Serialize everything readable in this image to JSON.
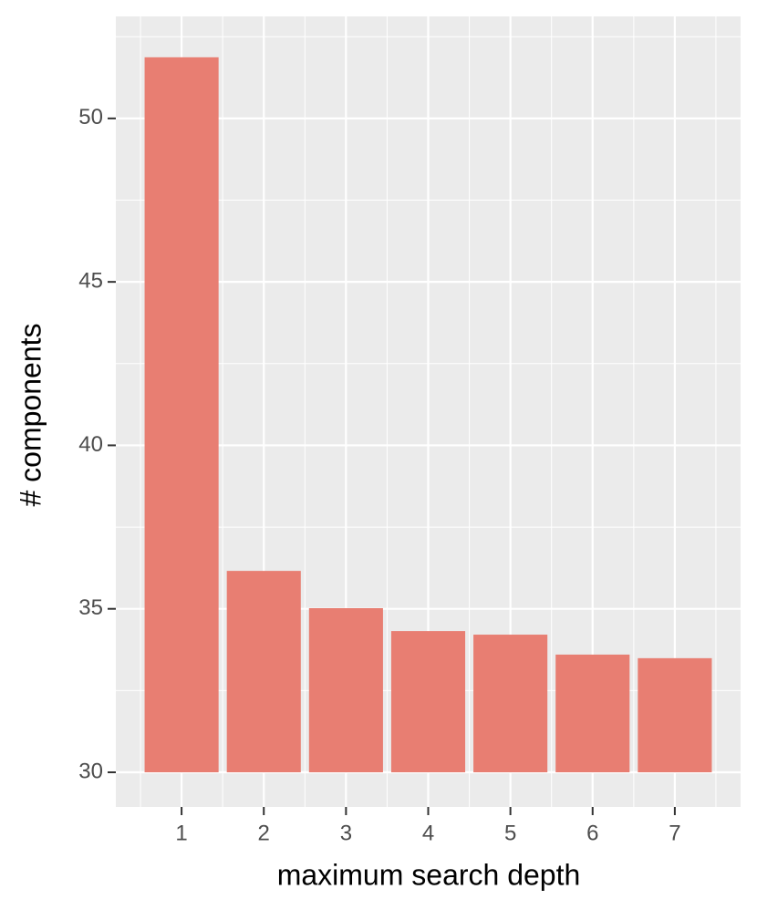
{
  "chart_data": {
    "type": "bar",
    "x_label": "maximum search depth",
    "y_label": "# components",
    "categories": [
      "1",
      "2",
      "3",
      "4",
      "5",
      "6",
      "7"
    ],
    "values": [
      51.87,
      36.16,
      35.02,
      34.32,
      34.21,
      33.6,
      33.49
    ],
    "color": "#e87e72",
    "ylim": [
      28.94,
      53.12
    ],
    "yticks": [
      30,
      35,
      40,
      45,
      50
    ],
    "grid": true
  }
}
